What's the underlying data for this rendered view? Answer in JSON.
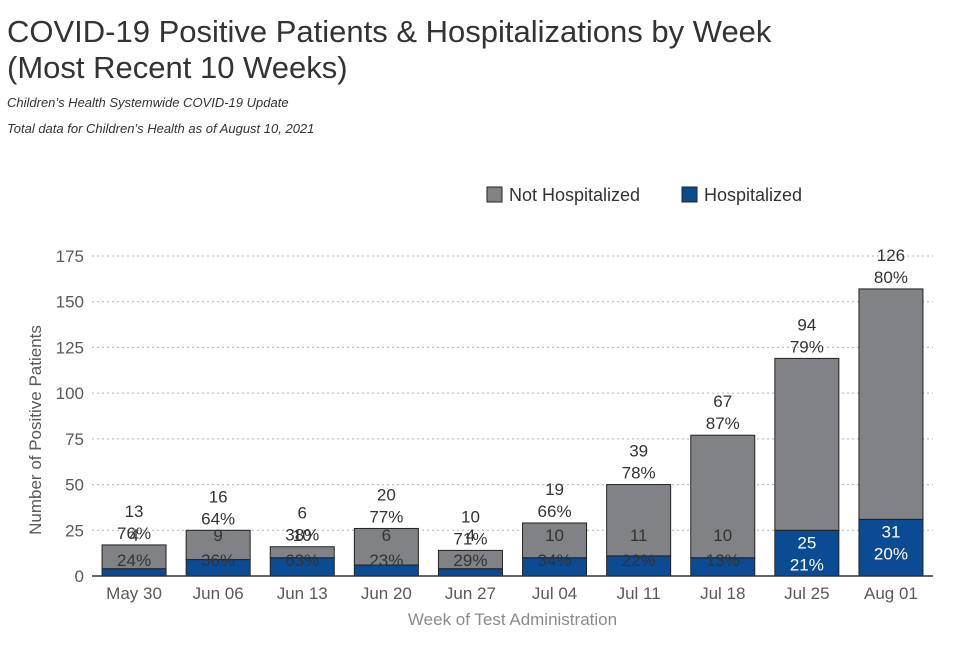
{
  "header": {
    "title_line1": "COVID-19 Positive Patients & Hospitalizations by Week",
    "title_line2": "(Most Recent 10 Weeks)",
    "subtitle1": "Children’s Health Systemwide COVID-19 Update",
    "subtitle2": "Total data for Children’s Health as of August 10, 2021"
  },
  "colors": {
    "not_hospitalized": "#808285",
    "hospitalized": "#0b4b94",
    "grid": "#b0b0b0",
    "text": "#333333",
    "axis_text": "#595959"
  },
  "chart_data": {
    "type": "bar",
    "stacked": true,
    "xlabel": "Week of Test Administration",
    "ylabel": "Number of Positive Patients",
    "ylim": [
      0,
      175
    ],
    "yticks": [
      0,
      25,
      50,
      75,
      100,
      125,
      150,
      175
    ],
    "grid": true,
    "legend_position": "top-right",
    "categories": [
      "May 30",
      "Jun 06",
      "Jun 13",
      "Jun 20",
      "Jun 27",
      "Jul 04",
      "Jul 11",
      "Jul 18",
      "Jul 25",
      "Aug 01"
    ],
    "series": [
      {
        "name": "Hospitalized",
        "values": [
          4,
          9,
          10,
          6,
          4,
          10,
          11,
          10,
          25,
          31
        ],
        "percent_labels": [
          "24%",
          "36%",
          "63%",
          "23%",
          "29%",
          "34%",
          "22%",
          "13%",
          "21%",
          "20%"
        ]
      },
      {
        "name": "Not Hospitalized",
        "values": [
          13,
          16,
          6,
          20,
          10,
          19,
          39,
          67,
          94,
          126
        ],
        "percent_labels": [
          "76%",
          "64%",
          "38%",
          "77%",
          "71%",
          "66%",
          "78%",
          "87%",
          "79%",
          "80%"
        ]
      }
    ]
  }
}
